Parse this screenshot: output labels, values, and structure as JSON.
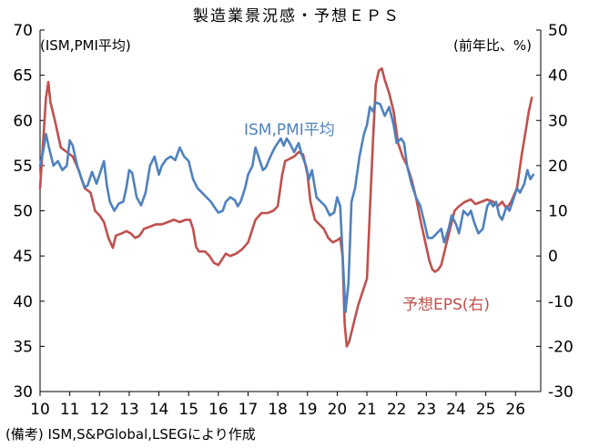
{
  "chart_data": {
    "type": "line",
    "title": "製造業景況感・予想ＥＰＳ",
    "left_axis_label": "(ISM,PMI平均)",
    "right_axis_label": "(前年比、%)",
    "x_ticks": [
      "10",
      "11",
      "12",
      "13",
      "14",
      "15",
      "16",
      "17",
      "18",
      "19",
      "20",
      "21",
      "22",
      "23",
      "24",
      "25",
      "26"
    ],
    "x_range": [
      2010.0,
      2026.85
    ],
    "y_left": {
      "min": 30,
      "max": 70,
      "ticks": [
        30,
        35,
        40,
        45,
        50,
        55,
        60,
        65,
        70
      ]
    },
    "y_right": {
      "min": -30,
      "max": 50,
      "ticks": [
        -30,
        -20,
        -10,
        0,
        10,
        20,
        30,
        40,
        50
      ]
    },
    "grid": false,
    "series": [
      {
        "name": "ISM,PMI平均",
        "axis": "left",
        "color": "#4f81bd",
        "label": "ISM,PMI平均",
        "points": [
          [
            2010.0,
            55.0
          ],
          [
            2010.1,
            56.5
          ],
          [
            2010.2,
            58.5
          ],
          [
            2010.3,
            57.0
          ],
          [
            2010.45,
            55.0
          ],
          [
            2010.6,
            55.5
          ],
          [
            2010.75,
            54.5
          ],
          [
            2010.9,
            55.0
          ],
          [
            2011.0,
            57.8
          ],
          [
            2011.1,
            57.2
          ],
          [
            2011.25,
            55.0
          ],
          [
            2011.4,
            53.5
          ],
          [
            2011.5,
            52.6
          ],
          [
            2011.6,
            52.8
          ],
          [
            2011.75,
            54.3
          ],
          [
            2011.9,
            53.0
          ],
          [
            2012.0,
            54.0
          ],
          [
            2012.15,
            55.5
          ],
          [
            2012.25,
            52.8
          ],
          [
            2012.35,
            51.0
          ],
          [
            2012.5,
            50.0
          ],
          [
            2012.65,
            50.8
          ],
          [
            2012.8,
            51.0
          ],
          [
            2012.9,
            52.5
          ],
          [
            2013.0,
            54.5
          ],
          [
            2013.1,
            54.2
          ],
          [
            2013.25,
            51.5
          ],
          [
            2013.4,
            50.6
          ],
          [
            2013.55,
            52.0
          ],
          [
            2013.7,
            55.0
          ],
          [
            2013.85,
            56.0
          ],
          [
            2014.0,
            54.0
          ],
          [
            2014.1,
            55.0
          ],
          [
            2014.25,
            55.7
          ],
          [
            2014.4,
            56.0
          ],
          [
            2014.55,
            55.6
          ],
          [
            2014.7,
            57.0
          ],
          [
            2014.85,
            56.0
          ],
          [
            2015.0,
            55.5
          ],
          [
            2015.15,
            53.5
          ],
          [
            2015.3,
            52.5
          ],
          [
            2015.45,
            52.0
          ],
          [
            2015.6,
            51.5
          ],
          [
            2015.75,
            51.0
          ],
          [
            2015.85,
            50.5
          ],
          [
            2016.0,
            49.8
          ],
          [
            2016.15,
            50.0
          ],
          [
            2016.25,
            51.0
          ],
          [
            2016.4,
            51.5
          ],
          [
            2016.55,
            51.2
          ],
          [
            2016.65,
            50.5
          ],
          [
            2016.75,
            51.0
          ],
          [
            2016.9,
            52.5
          ],
          [
            2017.0,
            54.0
          ],
          [
            2017.15,
            55.0
          ],
          [
            2017.25,
            57.0
          ],
          [
            2017.35,
            56.0
          ],
          [
            2017.5,
            54.5
          ],
          [
            2017.6,
            54.8
          ],
          [
            2017.75,
            56.0
          ],
          [
            2017.9,
            57.0
          ],
          [
            2018.0,
            57.5
          ],
          [
            2018.1,
            58.0
          ],
          [
            2018.2,
            57.2
          ],
          [
            2018.3,
            58.0
          ],
          [
            2018.4,
            57.5
          ],
          [
            2018.55,
            56.5
          ],
          [
            2018.7,
            57.5
          ],
          [
            2018.8,
            56.3
          ],
          [
            2018.95,
            55.0
          ],
          [
            2019.05,
            53.5
          ],
          [
            2019.15,
            54.5
          ],
          [
            2019.3,
            51.5
          ],
          [
            2019.45,
            51.0
          ],
          [
            2019.6,
            50.5
          ],
          [
            2019.75,
            49.5
          ],
          [
            2019.9,
            49.8
          ],
          [
            2020.0,
            51.5
          ],
          [
            2020.1,
            50.5
          ],
          [
            2020.2,
            44.0
          ],
          [
            2020.28,
            38.8
          ],
          [
            2020.38,
            42.0
          ],
          [
            2020.48,
            51.0
          ],
          [
            2020.6,
            52.5
          ],
          [
            2020.75,
            56.0
          ],
          [
            2020.9,
            58.5
          ],
          [
            2021.0,
            59.5
          ],
          [
            2021.1,
            61.5
          ],
          [
            2021.2,
            61.0
          ],
          [
            2021.3,
            62.0
          ],
          [
            2021.45,
            61.8
          ],
          [
            2021.6,
            60.5
          ],
          [
            2021.75,
            61.5
          ],
          [
            2021.9,
            59.5
          ],
          [
            2022.0,
            57.5
          ],
          [
            2022.15,
            58.0
          ],
          [
            2022.25,
            57.5
          ],
          [
            2022.35,
            55.0
          ],
          [
            2022.5,
            53.0
          ],
          [
            2022.65,
            51.5
          ],
          [
            2022.8,
            50.5
          ],
          [
            2022.95,
            48.5
          ],
          [
            2023.05,
            47.0
          ],
          [
            2023.2,
            47.0
          ],
          [
            2023.35,
            47.5
          ],
          [
            2023.5,
            48.0
          ],
          [
            2023.6,
            46.5
          ],
          [
            2023.75,
            48.0
          ],
          [
            2023.85,
            49.5
          ],
          [
            2024.0,
            48.5
          ],
          [
            2024.1,
            47.5
          ],
          [
            2024.25,
            50.0
          ],
          [
            2024.4,
            49.5
          ],
          [
            2024.5,
            50.0
          ],
          [
            2024.6,
            48.8
          ],
          [
            2024.75,
            47.5
          ],
          [
            2024.9,
            48.0
          ],
          [
            2025.05,
            50.5
          ],
          [
            2025.15,
            51.0
          ],
          [
            2025.25,
            50.5
          ],
          [
            2025.35,
            51.0
          ],
          [
            2025.45,
            49.5
          ],
          [
            2025.55,
            49.0
          ],
          [
            2025.7,
            50.5
          ],
          [
            2025.8,
            50.0
          ],
          [
            2025.9,
            51.0
          ],
          [
            2026.05,
            52.5
          ],
          [
            2026.15,
            52.0
          ],
          [
            2026.3,
            53.0
          ],
          [
            2026.4,
            54.5
          ],
          [
            2026.5,
            53.5
          ],
          [
            2026.6,
            54.0
          ]
        ]
      },
      {
        "name": "予想EPS(右)",
        "axis": "right",
        "color": "#c0504d",
        "label": "予想EPS(右)",
        "points": [
          [
            2010.0,
            15.0
          ],
          [
            2010.1,
            25.0
          ],
          [
            2010.2,
            35.0
          ],
          [
            2010.28,
            38.5
          ],
          [
            2010.35,
            34.0
          ],
          [
            2010.5,
            30.0
          ],
          [
            2010.7,
            24.0
          ],
          [
            2010.9,
            23.0
          ],
          [
            2011.1,
            22.0
          ],
          [
            2011.3,
            19.0
          ],
          [
            2011.5,
            15.0
          ],
          [
            2011.7,
            14.0
          ],
          [
            2011.85,
            10.0
          ],
          [
            2012.0,
            9.0
          ],
          [
            2012.15,
            7.5
          ],
          [
            2012.3,
            4.0
          ],
          [
            2012.45,
            1.8
          ],
          [
            2012.55,
            4.5
          ],
          [
            2012.75,
            5.0
          ],
          [
            2012.9,
            5.5
          ],
          [
            2013.05,
            5.0
          ],
          [
            2013.2,
            4.0
          ],
          [
            2013.35,
            4.5
          ],
          [
            2013.5,
            6.0
          ],
          [
            2013.7,
            6.5
          ],
          [
            2013.9,
            7.0
          ],
          [
            2014.1,
            7.0
          ],
          [
            2014.3,
            7.5
          ],
          [
            2014.5,
            8.0
          ],
          [
            2014.7,
            7.5
          ],
          [
            2014.9,
            8.0
          ],
          [
            2015.05,
            8.0
          ],
          [
            2015.15,
            6.0
          ],
          [
            2015.25,
            2.0
          ],
          [
            2015.35,
            1.0
          ],
          [
            2015.55,
            1.0
          ],
          [
            2015.7,
            0.0
          ],
          [
            2015.85,
            -1.5
          ],
          [
            2016.0,
            -2.0
          ],
          [
            2016.1,
            -1.0
          ],
          [
            2016.25,
            0.5
          ],
          [
            2016.4,
            0.0
          ],
          [
            2016.6,
            0.5
          ],
          [
            2016.8,
            1.5
          ],
          [
            2017.0,
            3.0
          ],
          [
            2017.1,
            5.0
          ],
          [
            2017.25,
            8.0
          ],
          [
            2017.45,
            9.5
          ],
          [
            2017.65,
            9.5
          ],
          [
            2017.85,
            10.0
          ],
          [
            2018.0,
            11.0
          ],
          [
            2018.15,
            18.0
          ],
          [
            2018.25,
            21.0
          ],
          [
            2018.4,
            21.5
          ],
          [
            2018.55,
            22.0
          ],
          [
            2018.7,
            23.0
          ],
          [
            2018.85,
            22.5
          ],
          [
            2019.0,
            18.0
          ],
          [
            2019.1,
            12.0
          ],
          [
            2019.25,
            8.0
          ],
          [
            2019.4,
            7.0
          ],
          [
            2019.55,
            6.0
          ],
          [
            2019.7,
            4.0
          ],
          [
            2019.85,
            3.0
          ],
          [
            2020.0,
            3.5
          ],
          [
            2020.1,
            4.0
          ],
          [
            2020.18,
            0.0
          ],
          [
            2020.25,
            -15.0
          ],
          [
            2020.32,
            -20.0
          ],
          [
            2020.4,
            -19.0
          ],
          [
            2020.55,
            -15.0
          ],
          [
            2020.7,
            -11.0
          ],
          [
            2020.85,
            -8.0
          ],
          [
            2021.0,
            -5.0
          ],
          [
            2021.1,
            10.0
          ],
          [
            2021.2,
            25.0
          ],
          [
            2021.3,
            38.0
          ],
          [
            2021.4,
            41.0
          ],
          [
            2021.5,
            41.5
          ],
          [
            2021.6,
            39.0
          ],
          [
            2021.75,
            36.0
          ],
          [
            2021.9,
            32.0
          ],
          [
            2022.05,
            25.0
          ],
          [
            2022.2,
            22.0
          ],
          [
            2022.35,
            20.0
          ],
          [
            2022.5,
            17.0
          ],
          [
            2022.65,
            13.0
          ],
          [
            2022.8,
            8.0
          ],
          [
            2022.9,
            5.0
          ],
          [
            2023.0,
            2.0
          ],
          [
            2023.1,
            -1.0
          ],
          [
            2023.2,
            -3.0
          ],
          [
            2023.3,
            -3.5
          ],
          [
            2023.4,
            -3.0
          ],
          [
            2023.5,
            -2.0
          ],
          [
            2023.65,
            2.0
          ],
          [
            2023.8,
            6.0
          ],
          [
            2023.95,
            10.0
          ],
          [
            2024.1,
            11.0
          ],
          [
            2024.3,
            12.0
          ],
          [
            2024.5,
            12.5
          ],
          [
            2024.65,
            11.5
          ],
          [
            2024.85,
            12.0
          ],
          [
            2025.05,
            12.5
          ],
          [
            2025.25,
            12.0
          ],
          [
            2025.4,
            11.0
          ],
          [
            2025.55,
            12.0
          ],
          [
            2025.7,
            10.5
          ],
          [
            2025.85,
            12.0
          ],
          [
            2026.05,
            15.0
          ],
          [
            2026.2,
            22.0
          ],
          [
            2026.35,
            28.0
          ],
          [
            2026.45,
            32.0
          ],
          [
            2026.55,
            35.0
          ]
        ]
      }
    ]
  },
  "note": "(備考) ISM,S&PGlobal,LSEGにより作成"
}
